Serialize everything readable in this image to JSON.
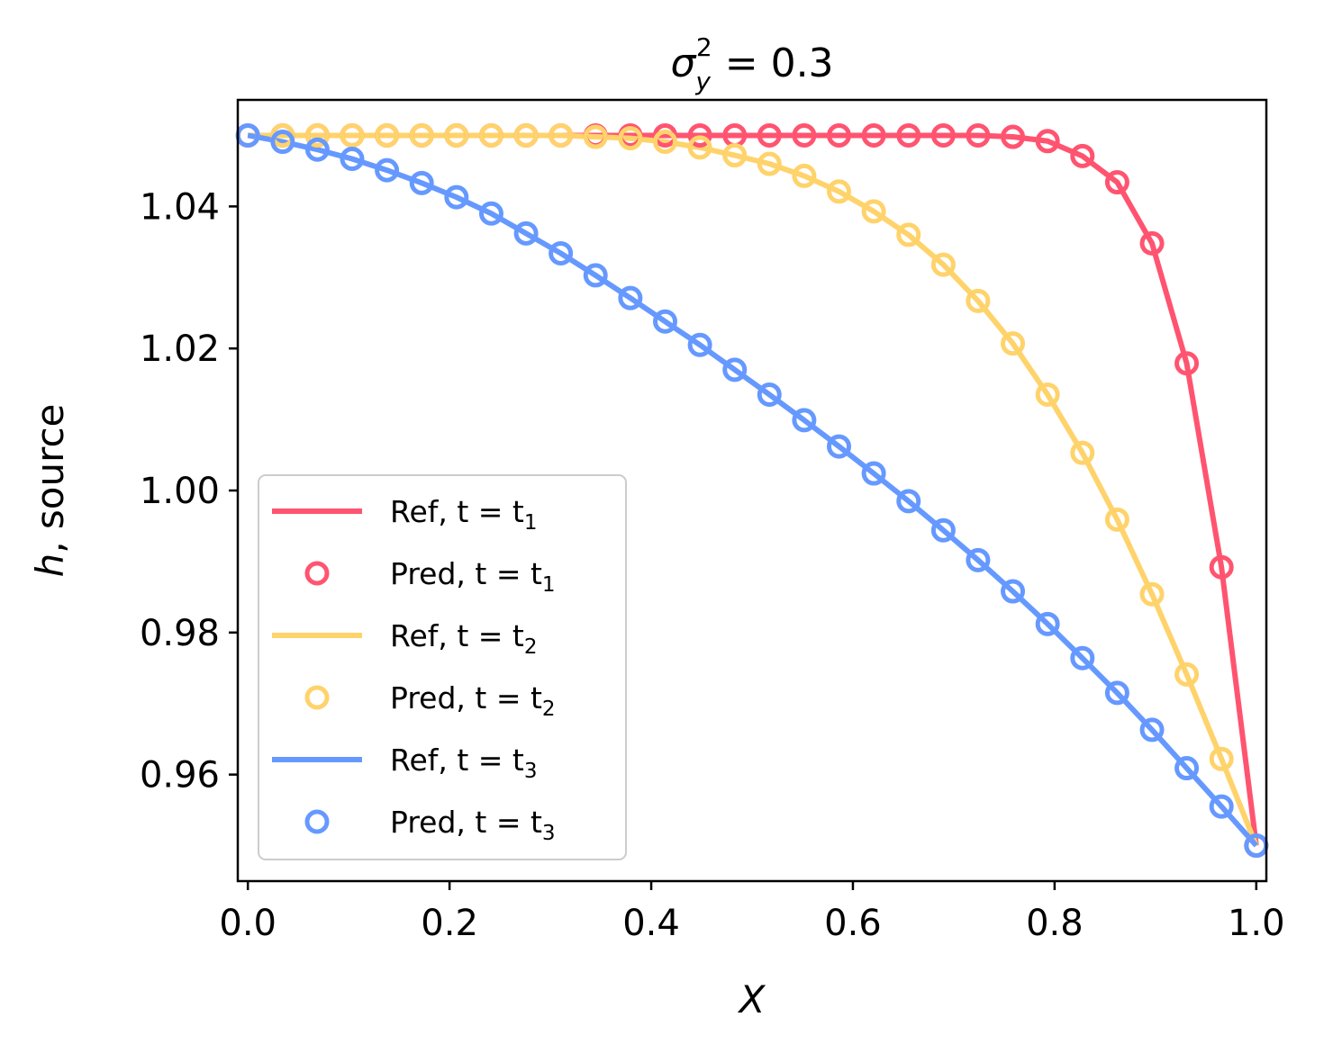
{
  "chart_data": {
    "type": "line",
    "title": "σ_y^2 = 0.3",
    "title_parts": {
      "base": "σ",
      "sup": "2",
      "sub": "y",
      "rest": " = 0.3"
    },
    "xlabel": "X",
    "ylabel": "h, source",
    "xlim": [
      -0.01,
      1.01
    ],
    "ylim": [
      0.945,
      1.055
    ],
    "xticks": [
      0.0,
      0.2,
      0.4,
      0.6,
      0.8,
      1.0
    ],
    "xtick_labels": [
      "0.0",
      "0.2",
      "0.4",
      "0.6",
      "0.8",
      "1.0"
    ],
    "yticks": [
      0.96,
      0.98,
      1.0,
      1.02,
      1.04
    ],
    "ytick_labels": [
      "0.96",
      "0.98",
      "1.00",
      "1.02",
      "1.04"
    ],
    "legend_position": "lower-left",
    "x": [
      0.0,
      0.0345,
      0.069,
      0.1034,
      0.1379,
      0.1724,
      0.2069,
      0.2414,
      0.2759,
      0.3103,
      0.3448,
      0.3793,
      0.4138,
      0.4483,
      0.4828,
      0.5172,
      0.5517,
      0.5862,
      0.6207,
      0.6552,
      0.6897,
      0.7241,
      0.7586,
      0.7931,
      0.8276,
      0.8621,
      0.8966,
      0.931,
      0.9655,
      1.0
    ],
    "series": [
      {
        "name": "t1",
        "ref_label": "Ref, t = t",
        "pred_label": "Pred, t = t",
        "subscript": "1",
        "color": "#FF5470",
        "values": [
          1.05,
          1.05,
          1.05,
          1.05,
          1.05,
          1.05,
          1.05,
          1.05,
          1.05,
          1.05,
          1.05,
          1.05,
          1.05,
          1.05,
          1.05,
          1.05,
          1.05,
          1.05,
          1.05,
          1.05,
          1.05,
          1.05,
          1.0498,
          1.0492,
          1.0471,
          1.0434,
          1.0348,
          1.0179,
          0.9892,
          0.95
        ]
      },
      {
        "name": "t2",
        "ref_label": "Ref, t = t",
        "pred_label": "Pred, t = t",
        "subscript": "2",
        "color": "#FFD36B",
        "values": [
          1.05,
          1.05,
          1.05,
          1.05,
          1.05,
          1.05,
          1.05,
          1.05,
          1.05,
          1.05,
          1.0498,
          1.0496,
          1.0491,
          1.0483,
          1.0472,
          1.046,
          1.0443,
          1.0421,
          1.0393,
          1.036,
          1.0318,
          1.0267,
          1.0207,
          1.0135,
          1.0053,
          0.9959,
          0.9854,
          0.9741,
          0.9622,
          0.95
        ]
      },
      {
        "name": "t3",
        "ref_label": "Ref, t = t",
        "pred_label": "Pred, t = t",
        "subscript": "3",
        "color": "#6699FF",
        "values": [
          1.05,
          1.0491,
          1.048,
          1.0467,
          1.0451,
          1.0433,
          1.0413,
          1.039,
          1.0362,
          1.0334,
          1.0303,
          1.0271,
          1.0238,
          1.0205,
          1.017,
          1.0135,
          1.0099,
          1.0062,
          1.0024,
          0.9985,
          0.9944,
          0.9902,
          0.9858,
          0.9812,
          0.9764,
          0.9715,
          0.9663,
          0.9609,
          0.9555,
          0.95
        ]
      }
    ]
  }
}
